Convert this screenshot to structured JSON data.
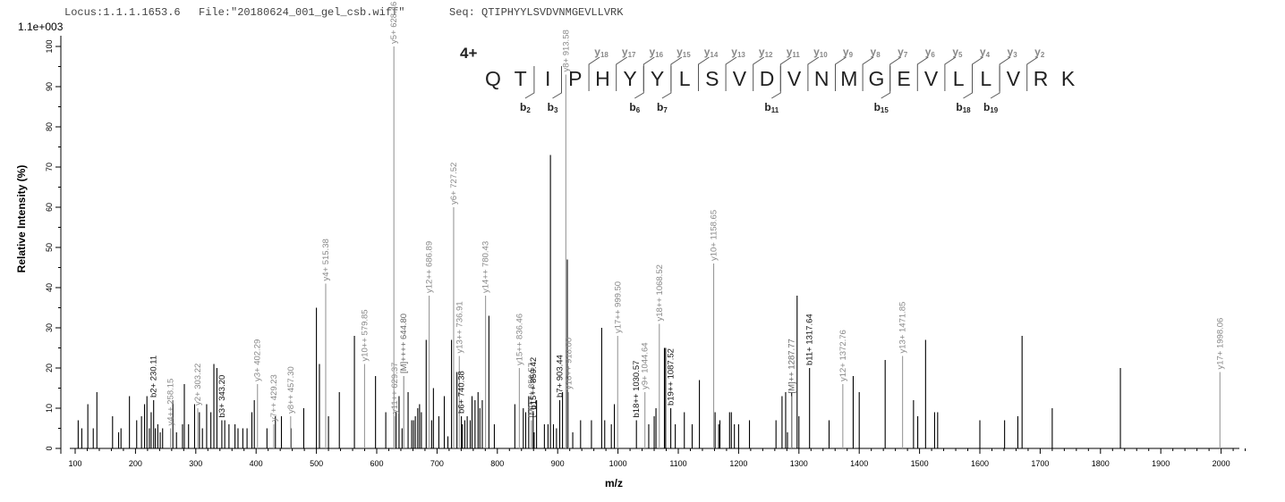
{
  "header": {
    "locus": "Locus:1.1.1.1653.6",
    "file": "File:\"20180624_001_gel_csb.wiff\"",
    "seq": "Seq: QTIPHYYLSVDVNMGEVLLVRK"
  },
  "charge_state": "4+",
  "chart_data": {
    "type": "bar",
    "ymax_label": "1.1e+003",
    "xlabel": "m/z",
    "ylabel": "Relative   Intensity (%)",
    "xlim": [
      90,
      2080
    ],
    "ylim": [
      0,
      100
    ],
    "xticks": [
      100,
      200,
      300,
      400,
      500,
      600,
      700,
      800,
      900,
      1000,
      1100,
      1200,
      1300,
      1400,
      1500,
      1600,
      1700,
      1800,
      1900,
      2000
    ],
    "yticks": [
      0,
      10,
      20,
      30,
      40,
      50,
      60,
      70,
      80,
      90,
      100
    ],
    "grid": false,
    "sequence": [
      "Q",
      "T",
      "I",
      "P",
      "H",
      "Y",
      "Y",
      "L",
      "S",
      "V",
      "D",
      "V",
      "N",
      "M",
      "G",
      "E",
      "V",
      "L",
      "L",
      "V",
      "R",
      "K"
    ],
    "y_ions_shown": [
      18,
      17,
      16,
      15,
      14,
      13,
      12,
      11,
      10,
      9,
      8,
      7,
      6,
      5,
      4,
      3,
      2
    ],
    "b_ions_shown": [
      2,
      3,
      6,
      7,
      11,
      15,
      18,
      19
    ],
    "labeled_peaks": [
      {
        "mz": 230.11,
        "intensity": 12,
        "label": "b2+ 230.11",
        "ion": "b"
      },
      {
        "mz": 258.15,
        "intensity": 5,
        "label": "y4++ 258.15",
        "ion": "y"
      },
      {
        "mz": 303.22,
        "intensity": 10,
        "label": "y2+ 303.22",
        "ion": "y"
      },
      {
        "mz": 343.2,
        "intensity": 7,
        "label": "b3+ 343.20",
        "ion": "b"
      },
      {
        "mz": 402.29,
        "intensity": 16,
        "label": "y3+ 402.29",
        "ion": "y"
      },
      {
        "mz": 429.23,
        "intensity": 6,
        "label": "y7++ 429.23",
        "ion": "y"
      },
      {
        "mz": 457.3,
        "intensity": 8,
        "label": "y8++ 457.30",
        "ion": "y"
      },
      {
        "mz": 515.38,
        "intensity": 41,
        "label": "y4+ 515.38",
        "ion": "y"
      },
      {
        "mz": 579.85,
        "intensity": 21,
        "label": "y10++ 579.85",
        "ion": "y"
      },
      {
        "mz": 629.37,
        "intensity": 8,
        "label": "y11++ 629.37",
        "ion": "y"
      },
      {
        "mz": 628.46,
        "intensity": 100,
        "label": "y5+ 628.46",
        "ion": "y"
      },
      {
        "mz": 644.8,
        "intensity": 18,
        "label": "[M]++++ 644.80",
        "ion": "m"
      },
      {
        "mz": 686.89,
        "intensity": 38,
        "label": "y12++ 686.89",
        "ion": "y"
      },
      {
        "mz": 727.52,
        "intensity": 60,
        "label": "y6+ 727.52",
        "ion": "y"
      },
      {
        "mz": 736.91,
        "intensity": 23,
        "label": "y13++ 736.91",
        "ion": "y"
      },
      {
        "mz": 740.38,
        "intensity": 8,
        "label": "b6+ 740.38",
        "ion": "b"
      },
      {
        "mz": 780.43,
        "intensity": 38,
        "label": "y14++ 780.43",
        "ion": "y"
      },
      {
        "mz": 836.46,
        "intensity": 20,
        "label": "y15++ 836.46",
        "ion": "y"
      },
      {
        "mz": 856.57,
        "intensity": 7,
        "label": "[M]+++ 856.57",
        "ion": "m"
      },
      {
        "mz": 859.42,
        "intensity": 9,
        "label": "b15++ 859.42",
        "ion": "b"
      },
      {
        "mz": 903.44,
        "intensity": 12,
        "label": "b7+ 903.44",
        "ion": "b"
      },
      {
        "mz": 913.58,
        "intensity": 93,
        "label": "y8+ 913.58",
        "ion": "y"
      },
      {
        "mz": 918.0,
        "intensity": 14,
        "label": "y16++ 918.00",
        "ion": "y"
      },
      {
        "mz": 999.5,
        "intensity": 28,
        "label": "y17++ 999.50",
        "ion": "y"
      },
      {
        "mz": 1030.57,
        "intensity": 7,
        "label": "b18++ 1030.57",
        "ion": "b"
      },
      {
        "mz": 1044.64,
        "intensity": 14,
        "label": "y9+ 1044.64",
        "ion": "y"
      },
      {
        "mz": 1068.52,
        "intensity": 31,
        "label": "y18++ 1068.52",
        "ion": "y"
      },
      {
        "mz": 1087.52,
        "intensity": 10,
        "label": "b19++ 1087.52",
        "ion": "b"
      },
      {
        "mz": 1158.65,
        "intensity": 46,
        "label": "y10+ 1158.65",
        "ion": "y"
      },
      {
        "mz": 1287.77,
        "intensity": 13,
        "label": "[M]++ 1287.77",
        "ion": "m"
      },
      {
        "mz": 1317.64,
        "intensity": 20,
        "label": "b11+ 1317.64",
        "ion": "b"
      },
      {
        "mz": 1372.76,
        "intensity": 16,
        "label": "y12+ 1372.76",
        "ion": "y"
      },
      {
        "mz": 1471.85,
        "intensity": 23,
        "label": "y13+ 1471.85",
        "ion": "y"
      },
      {
        "mz": 1998.06,
        "intensity": 19,
        "label": "y17+ 1998.06",
        "ion": "y"
      }
    ],
    "peaks": [
      [
        105,
        7
      ],
      [
        111,
        5
      ],
      [
        121,
        11
      ],
      [
        130,
        5
      ],
      [
        136,
        14
      ],
      [
        162,
        8
      ],
      [
        172,
        4
      ],
      [
        176,
        5
      ],
      [
        190,
        13
      ],
      [
        202,
        7
      ],
      [
        210,
        8
      ],
      [
        215,
        11
      ],
      [
        219,
        13
      ],
      [
        223,
        5
      ],
      [
        226,
        9
      ],
      [
        233,
        5
      ],
      [
        237,
        6
      ],
      [
        241,
        4
      ],
      [
        245,
        5
      ],
      [
        262,
        12
      ],
      [
        268,
        4
      ],
      [
        278,
        6
      ],
      [
        281,
        16
      ],
      [
        288,
        6
      ],
      [
        298,
        11
      ],
      [
        306,
        9
      ],
      [
        311,
        5
      ],
      [
        318,
        11
      ],
      [
        325,
        9
      ],
      [
        330,
        21
      ],
      [
        335,
        20
      ],
      [
        348,
        7
      ],
      [
        355,
        6
      ],
      [
        365,
        6
      ],
      [
        370,
        5
      ],
      [
        378,
        5
      ],
      [
        385,
        5
      ],
      [
        393,
        9
      ],
      [
        397,
        12
      ],
      [
        418,
        5
      ],
      [
        432,
        8
      ],
      [
        442,
        8
      ],
      [
        458,
        5
      ],
      [
        479,
        10
      ],
      [
        500,
        35
      ],
      [
        505,
        21
      ],
      [
        520,
        8
      ],
      [
        538,
        14
      ],
      [
        563,
        28
      ],
      [
        598,
        18
      ],
      [
        615,
        9
      ],
      [
        632,
        9
      ],
      [
        637,
        13
      ],
      [
        642,
        5
      ],
      [
        652,
        14
      ],
      [
        658,
        7
      ],
      [
        661,
        7
      ],
      [
        664,
        8
      ],
      [
        668,
        10
      ],
      [
        671,
        11
      ],
      [
        674,
        9
      ],
      [
        682,
        27
      ],
      [
        691,
        7
      ],
      [
        694,
        15
      ],
      [
        703,
        8
      ],
      [
        712,
        13
      ],
      [
        718,
        3
      ],
      [
        724,
        27
      ],
      [
        733,
        19
      ],
      [
        742,
        6
      ],
      [
        746,
        7
      ],
      [
        750,
        8
      ],
      [
        755,
        7
      ],
      [
        758,
        13
      ],
      [
        763,
        12
      ],
      [
        768,
        14
      ],
      [
        771,
        10
      ],
      [
        775,
        12
      ],
      [
        786,
        33
      ],
      [
        795,
        6
      ],
      [
        829,
        11
      ],
      [
        843,
        10
      ],
      [
        847,
        9
      ],
      [
        852,
        13
      ],
      [
        861,
        4
      ],
      [
        865,
        12
      ],
      [
        878,
        6
      ],
      [
        884,
        6
      ],
      [
        888,
        73
      ],
      [
        893,
        6
      ],
      [
        898,
        5
      ],
      [
        908,
        14
      ],
      [
        916,
        47
      ],
      [
        925,
        4
      ],
      [
        938,
        7
      ],
      [
        956,
        7
      ],
      [
        973,
        30
      ],
      [
        978,
        7
      ],
      [
        989,
        6
      ],
      [
        994,
        11
      ],
      [
        1051,
        6
      ],
      [
        1060,
        8
      ],
      [
        1063,
        10
      ],
      [
        1077,
        25
      ],
      [
        1079,
        25
      ],
      [
        1095,
        6
      ],
      [
        1110,
        9
      ],
      [
        1123,
        6
      ],
      [
        1135,
        17
      ],
      [
        1161,
        9
      ],
      [
        1167,
        6
      ],
      [
        1169,
        7
      ],
      [
        1185,
        9
      ],
      [
        1188,
        9
      ],
      [
        1193,
        6
      ],
      [
        1200,
        6
      ],
      [
        1218,
        7
      ],
      [
        1262,
        7
      ],
      [
        1272,
        13
      ],
      [
        1278,
        14
      ],
      [
        1281,
        4
      ],
      [
        1288,
        14
      ],
      [
        1297,
        38
      ],
      [
        1300,
        8
      ],
      [
        1350,
        7
      ],
      [
        1390,
        18
      ],
      [
        1400,
        14
      ],
      [
        1443,
        22
      ],
      [
        1490,
        12
      ],
      [
        1497,
        8
      ],
      [
        1510,
        27
      ],
      [
        1525,
        9
      ],
      [
        1530,
        9
      ],
      [
        1600,
        7
      ],
      [
        1641,
        7
      ],
      [
        1663,
        8
      ],
      [
        1670,
        28
      ],
      [
        1720,
        10
      ],
      [
        1833,
        20
      ]
    ]
  }
}
